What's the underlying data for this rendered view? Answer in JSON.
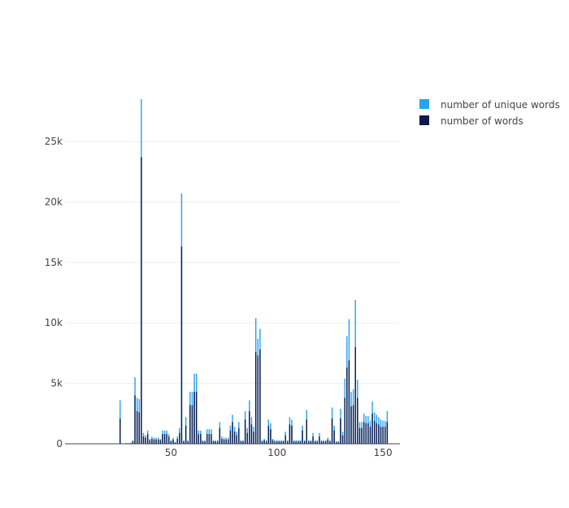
{
  "chart_data": {
    "type": "bar",
    "barmode": "overlay",
    "title": "",
    "xlabel": "",
    "ylabel": "",
    "xlim": [
      0,
      158
    ],
    "ylim": [
      0,
      28500
    ],
    "grid": "horizontal",
    "legend_position": "top-right",
    "x_ticks": [
      {
        "value": 50,
        "label": "50"
      },
      {
        "value": 100,
        "label": "100"
      },
      {
        "value": 150,
        "label": "150"
      }
    ],
    "y_ticks": [
      {
        "value": 0,
        "label": "0"
      },
      {
        "value": 5000,
        "label": "5k"
      },
      {
        "value": 10000,
        "label": "10k"
      },
      {
        "value": 15000,
        "label": "15k"
      },
      {
        "value": 20000,
        "label": "20k"
      },
      {
        "value": 25000,
        "label": "25k"
      }
    ],
    "series": [
      {
        "name": "number of unique words",
        "color": "#29a3ef",
        "points": [
          [
            26,
            3600
          ],
          [
            27,
            30
          ],
          [
            28,
            40
          ],
          [
            29,
            60
          ],
          [
            30,
            50
          ],
          [
            31,
            80
          ],
          [
            32,
            300
          ],
          [
            33,
            5500
          ],
          [
            34,
            3800
          ],
          [
            35,
            3700
          ],
          [
            36,
            28500
          ],
          [
            37,
            900
          ],
          [
            38,
            700
          ],
          [
            39,
            1100
          ],
          [
            40,
            400
          ],
          [
            41,
            600
          ],
          [
            42,
            500
          ],
          [
            43,
            500
          ],
          [
            44,
            500
          ],
          [
            45,
            400
          ],
          [
            46,
            1100
          ],
          [
            47,
            1100
          ],
          [
            48,
            1100
          ],
          [
            49,
            800
          ],
          [
            50,
            300
          ],
          [
            51,
            500
          ],
          [
            52,
            150
          ],
          [
            53,
            600
          ],
          [
            54,
            1300
          ],
          [
            55,
            20700
          ],
          [
            56,
            300
          ],
          [
            57,
            2200
          ],
          [
            58,
            300
          ],
          [
            59,
            4300
          ],
          [
            60,
            4300
          ],
          [
            61,
            5800
          ],
          [
            62,
            5800
          ],
          [
            63,
            1100
          ],
          [
            64,
            1100
          ],
          [
            65,
            300
          ],
          [
            66,
            300
          ],
          [
            67,
            1200
          ],
          [
            68,
            1200
          ],
          [
            69,
            1200
          ],
          [
            70,
            300
          ],
          [
            71,
            300
          ],
          [
            72,
            300
          ],
          [
            73,
            1800
          ],
          [
            74,
            600
          ],
          [
            75,
            500
          ],
          [
            76,
            500
          ],
          [
            77,
            500
          ],
          [
            78,
            1500
          ],
          [
            79,
            2400
          ],
          [
            80,
            1400
          ],
          [
            81,
            1000
          ],
          [
            82,
            1800
          ],
          [
            83,
            300
          ],
          [
            84,
            300
          ],
          [
            85,
            2700
          ],
          [
            86,
            1300
          ],
          [
            87,
            3600
          ],
          [
            88,
            2200
          ],
          [
            89,
            1400
          ],
          [
            90,
            10400
          ],
          [
            91,
            8700
          ],
          [
            92,
            9500
          ],
          [
            93,
            300
          ],
          [
            94,
            400
          ],
          [
            95,
            300
          ],
          [
            96,
            2000
          ],
          [
            97,
            1700
          ],
          [
            98,
            400
          ],
          [
            99,
            300
          ],
          [
            100,
            300
          ],
          [
            101,
            300
          ],
          [
            102,
            300
          ],
          [
            103,
            300
          ],
          [
            104,
            1000
          ],
          [
            105,
            300
          ],
          [
            106,
            2200
          ],
          [
            107,
            2000
          ],
          [
            108,
            300
          ],
          [
            109,
            300
          ],
          [
            110,
            300
          ],
          [
            111,
            300
          ],
          [
            112,
            1500
          ],
          [
            113,
            300
          ],
          [
            114,
            2800
          ],
          [
            115,
            300
          ],
          [
            116,
            300
          ],
          [
            117,
            900
          ],
          [
            118,
            300
          ],
          [
            119,
            300
          ],
          [
            120,
            900
          ],
          [
            121,
            300
          ],
          [
            122,
            300
          ],
          [
            123,
            300
          ],
          [
            124,
            500
          ],
          [
            125,
            300
          ],
          [
            126,
            3000
          ],
          [
            127,
            1500
          ],
          [
            128,
            200
          ],
          [
            129,
            200
          ],
          [
            130,
            2900
          ],
          [
            131,
            1000
          ],
          [
            132,
            5400
          ],
          [
            133,
            8900
          ],
          [
            134,
            10300
          ],
          [
            135,
            4300
          ],
          [
            136,
            4500
          ],
          [
            137,
            11900
          ],
          [
            138,
            5300
          ],
          [
            139,
            1800
          ],
          [
            140,
            1800
          ],
          [
            141,
            2500
          ],
          [
            142,
            2300
          ],
          [
            143,
            2300
          ],
          [
            144,
            1900
          ],
          [
            145,
            3500
          ],
          [
            146,
            2600
          ],
          [
            147,
            2400
          ],
          [
            148,
            2200
          ],
          [
            149,
            2000
          ],
          [
            150,
            1900
          ],
          [
            151,
            1900
          ],
          [
            152,
            2700
          ]
        ]
      },
      {
        "name": "number of words",
        "color": "#0c1a4e",
        "points": [
          [
            26,
            2100
          ],
          [
            27,
            20
          ],
          [
            28,
            30
          ],
          [
            29,
            40
          ],
          [
            30,
            30
          ],
          [
            31,
            50
          ],
          [
            32,
            200
          ],
          [
            33,
            4000
          ],
          [
            34,
            2700
          ],
          [
            35,
            2600
          ],
          [
            36,
            23700
          ],
          [
            37,
            600
          ],
          [
            38,
            500
          ],
          [
            39,
            800
          ],
          [
            40,
            300
          ],
          [
            41,
            400
          ],
          [
            42,
            350
          ],
          [
            43,
            350
          ],
          [
            44,
            350
          ],
          [
            45,
            300
          ],
          [
            46,
            800
          ],
          [
            47,
            800
          ],
          [
            48,
            800
          ],
          [
            49,
            600
          ],
          [
            50,
            200
          ],
          [
            51,
            350
          ],
          [
            52,
            100
          ],
          [
            53,
            400
          ],
          [
            54,
            900
          ],
          [
            55,
            16300
          ],
          [
            56,
            200
          ],
          [
            57,
            1500
          ],
          [
            58,
            200
          ],
          [
            59,
            3200
          ],
          [
            60,
            3200
          ],
          [
            61,
            4300
          ],
          [
            62,
            4300
          ],
          [
            63,
            800
          ],
          [
            64,
            800
          ],
          [
            65,
            200
          ],
          [
            66,
            200
          ],
          [
            67,
            800
          ],
          [
            68,
            800
          ],
          [
            69,
            800
          ],
          [
            70,
            200
          ],
          [
            71,
            200
          ],
          [
            72,
            200
          ],
          [
            73,
            1300
          ],
          [
            74,
            400
          ],
          [
            75,
            350
          ],
          [
            76,
            350
          ],
          [
            77,
            350
          ],
          [
            78,
            1100
          ],
          [
            79,
            1800
          ],
          [
            80,
            1000
          ],
          [
            81,
            700
          ],
          [
            82,
            1300
          ],
          [
            83,
            200
          ],
          [
            84,
            200
          ],
          [
            85,
            2000
          ],
          [
            86,
            900
          ],
          [
            87,
            2700
          ],
          [
            88,
            1600
          ],
          [
            89,
            1000
          ],
          [
            90,
            7600
          ],
          [
            91,
            7300
          ],
          [
            92,
            7800
          ],
          [
            93,
            200
          ],
          [
            94,
            300
          ],
          [
            95,
            200
          ],
          [
            96,
            1500
          ],
          [
            97,
            1200
          ],
          [
            98,
            300
          ],
          [
            99,
            200
          ],
          [
            100,
            200
          ],
          [
            101,
            200
          ],
          [
            102,
            200
          ],
          [
            103,
            200
          ],
          [
            104,
            700
          ],
          [
            105,
            200
          ],
          [
            106,
            1600
          ],
          [
            107,
            1500
          ],
          [
            108,
            200
          ],
          [
            109,
            200
          ],
          [
            110,
            200
          ],
          [
            111,
            200
          ],
          [
            112,
            1100
          ],
          [
            113,
            200
          ],
          [
            114,
            2000
          ],
          [
            115,
            200
          ],
          [
            116,
            200
          ],
          [
            117,
            600
          ],
          [
            118,
            200
          ],
          [
            119,
            200
          ],
          [
            120,
            600
          ],
          [
            121,
            200
          ],
          [
            122,
            200
          ],
          [
            123,
            200
          ],
          [
            124,
            350
          ],
          [
            125,
            200
          ],
          [
            126,
            2100
          ],
          [
            127,
            1100
          ],
          [
            128,
            150
          ],
          [
            129,
            150
          ],
          [
            130,
            2100
          ],
          [
            131,
            700
          ],
          [
            132,
            3800
          ],
          [
            133,
            6300
          ],
          [
            134,
            6900
          ],
          [
            135,
            3100
          ],
          [
            136,
            3200
          ],
          [
            137,
            8000
          ],
          [
            138,
            3800
          ],
          [
            139,
            1300
          ],
          [
            140,
            1300
          ],
          [
            141,
            1800
          ],
          [
            142,
            1700
          ],
          [
            143,
            1700
          ],
          [
            144,
            1400
          ],
          [
            145,
            2500
          ],
          [
            146,
            1900
          ],
          [
            147,
            1700
          ],
          [
            148,
            1600
          ],
          [
            149,
            1400
          ],
          [
            150,
            1400
          ],
          [
            151,
            1400
          ],
          [
            152,
            1800
          ]
        ]
      }
    ]
  }
}
